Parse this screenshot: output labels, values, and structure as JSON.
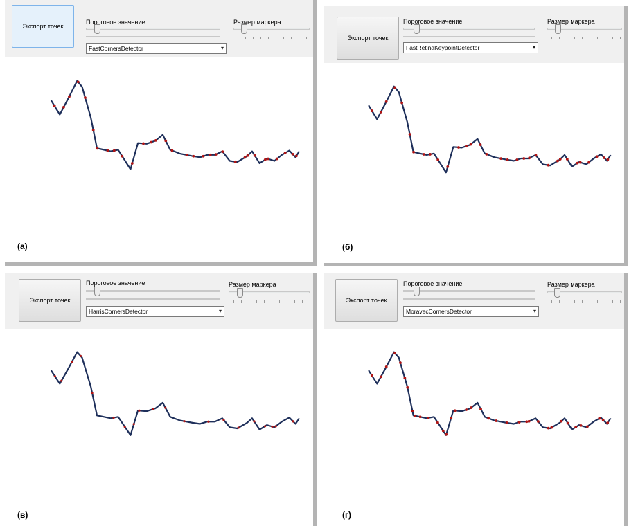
{
  "panels": [
    {
      "export_label": "Экспорт точек",
      "threshold_label": "Пороговое значение",
      "marker_size_label": "Размер маркера",
      "detector": "FastCornersDetector",
      "caption": "(а)",
      "export_state": "focused",
      "line_color": "#1e2f5a",
      "marker_color": "#b01515",
      "marker_density": "dense"
    },
    {
      "export_label": "Экспорт точек",
      "threshold_label": "Пороговое значение",
      "marker_size_label": "Размер маркера",
      "detector": "FastRetinaKeypointDetector",
      "caption": "(б)",
      "export_state": "normal",
      "line_color": "#1e2f5a",
      "marker_color": "#b01515",
      "marker_density": "medium"
    },
    {
      "export_label": "Экспорт точек",
      "threshold_label": "Пороговое значение",
      "marker_size_label": "Размер маркера",
      "detector": "HarrisCornersDetector",
      "caption": "(в)",
      "export_state": "normal",
      "line_color": "#1e2f5a",
      "marker_color": "#b01515",
      "marker_density": "sparse"
    },
    {
      "export_label": "Экспорт точек",
      "threshold_label": "Пороговое значение",
      "marker_size_label": "Размер маркера",
      "detector": "MoravecCornersDetector",
      "caption": "(г)",
      "export_state": "normal",
      "line_color": "#1e2f5a",
      "marker_color": "#b01515",
      "marker_density": "very-dense"
    }
  ]
}
